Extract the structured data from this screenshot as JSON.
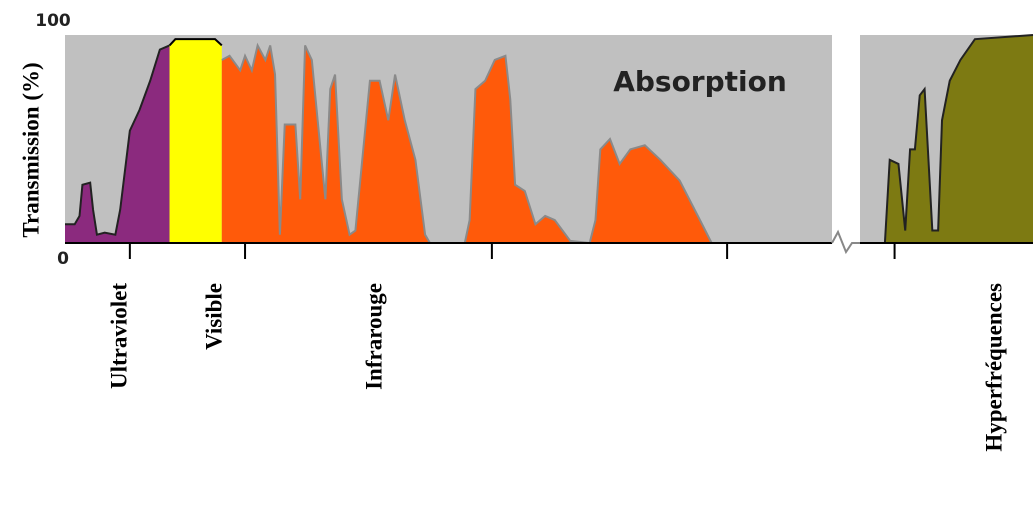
{
  "chart_data": {
    "type": "area",
    "ylabel": "Transmission (%)",
    "annotation": "Absorption",
    "xlim": [
      0,
      100
    ],
    "ylim": [
      0,
      100
    ],
    "xticks": [
      6.7,
      18.6,
      44.1,
      68.4,
      85.7
    ],
    "yticks": [
      0,
      100
    ],
    "series": [
      {
        "name": "Ultraviolet",
        "color": "#8b2a7e",
        "x": [
          0,
          1.0,
          1.5,
          1.8,
          2.6,
          2.9,
          3.3,
          4.1,
          5.2,
          5.7,
          6.7,
          7.7,
          8.8,
          9.8,
          10.8
        ],
        "values": [
          9,
          9,
          13,
          28,
          29,
          16,
          4,
          5,
          4,
          16,
          54,
          64,
          78,
          93,
          95
        ]
      },
      {
        "name": "Visible",
        "color": "#ffff00",
        "x": [
          10.8,
          11.4,
          11.9,
          15.5,
          16.2
        ],
        "values": [
          95,
          98,
          98,
          98,
          95
        ]
      },
      {
        "name": "Infrarouge",
        "color": "#ff5a0a",
        "x": [
          16.2,
          17.0,
          18.1,
          18.6,
          19.3,
          19.9,
          20.7,
          21.2,
          21.7,
          22.2,
          22.7,
          23.8,
          24.3,
          24.8,
          25.5,
          26.1,
          26.9,
          27.4,
          27.9,
          28.6,
          29.4,
          30.0,
          30.5,
          31.5,
          32.5,
          33.4,
          34.1,
          35.1,
          36.2,
          37.2,
          37.7,
          39.5,
          41.3,
          41.8,
          42.4,
          43.4,
          44.4,
          45.5,
          46.0,
          46.5,
          47.5,
          48.6,
          49.6,
          50.6,
          52.2,
          54.2,
          54.8,
          55.3,
          56.3,
          57.3,
          58.4,
          59.9,
          61.5,
          63.5,
          65.6,
          66.8
        ],
        "values": [
          88,
          90,
          83,
          90,
          83,
          95,
          88,
          95,
          81,
          4,
          57,
          57,
          21,
          95,
          88,
          59,
          21,
          74,
          81,
          21,
          4,
          6,
          30,
          78,
          78,
          59,
          81,
          59,
          40,
          4,
          0,
          null,
          0,
          11,
          74,
          78,
          88,
          90,
          69,
          28,
          25,
          9,
          13,
          11,
          1,
          0,
          11,
          45,
          50,
          38,
          45,
          47,
          40,
          30,
          11,
          0
        ]
      },
      {
        "name": "Hyperfréquences",
        "color": "#7d7a12",
        "x": [
          84.7,
          85.2,
          86.1,
          86.8,
          87.3,
          87.8,
          88.3,
          88.8,
          89.6,
          90.2,
          90.6,
          91.4,
          92.5,
          94.0,
          100
        ],
        "values": [
          0,
          40,
          38,
          6,
          45,
          45,
          71,
          74,
          6,
          6,
          59,
          78,
          88,
          98,
          100
        ]
      }
    ]
  }
}
